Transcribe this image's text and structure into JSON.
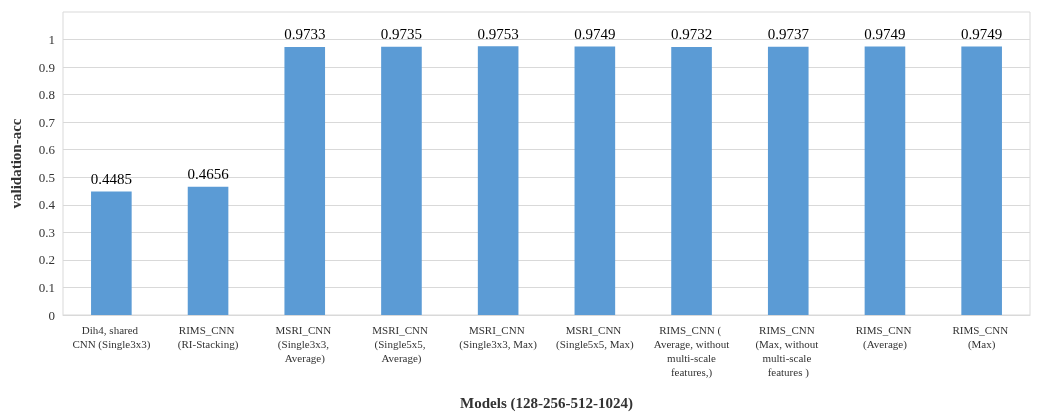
{
  "chart_data": {
    "type": "bar",
    "xlabel": "Models (128-256-512-1024)",
    "ylabel": "validation-acc",
    "categories": [
      "Dih4, shared CNN (Single3x3)",
      "RIMS_CNN (RI-Stacking)",
      "MSRI_CNN (Single3x3, Average)",
      "MSRI_CNN (Single5x5, Average)",
      "MSRI_CNN (Single3x3, Max)",
      "MSRI_CNN (Single5x5, Max)",
      "RIMS_CNN ( Average, without multi-scale features,)",
      "RIMS_CNN (Max, without multi-scale features )",
      "RIMS_CNN (Average)",
      "RIMS_CNN (Max)"
    ],
    "values": [
      0.4485,
      0.4656,
      0.9733,
      0.9735,
      0.9753,
      0.9749,
      0.9732,
      0.9737,
      0.9749,
      0.9749
    ],
    "color": "#5b9bd5",
    "ylim": [
      0,
      1.1
    ],
    "yticks": [
      0,
      0.1,
      0.2,
      0.3,
      0.4,
      0.5,
      0.6,
      0.7,
      0.8,
      0.9,
      1
    ],
    "grid": "y",
    "data_labels": true
  }
}
